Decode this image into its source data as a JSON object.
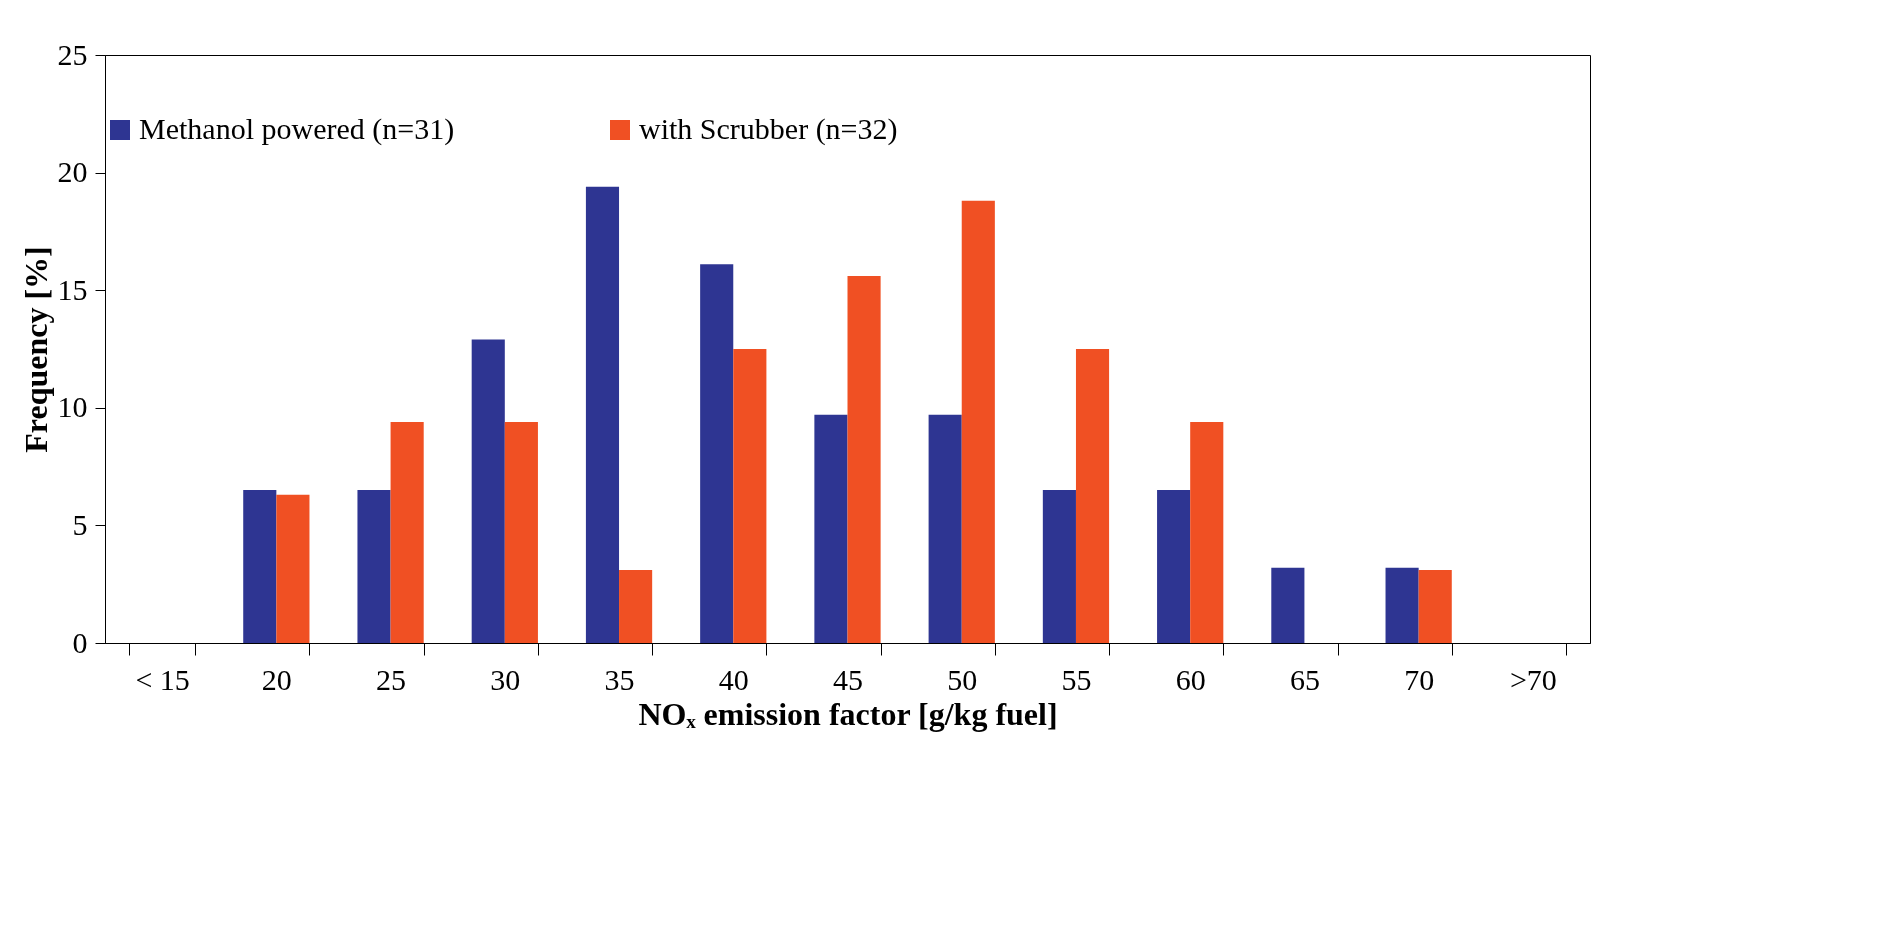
{
  "chart_data": {
    "type": "bar",
    "xlabel": "NOₓ emission factor [g/kg fuel]",
    "ylabel": "Frequency [%]",
    "categories": [
      "< 15",
      "20",
      "25",
      "30",
      "35",
      "40",
      "45",
      "50",
      "55",
      "60",
      "65",
      "70",
      ">70"
    ],
    "series": [
      {
        "name": "Methanol powered (n=31)",
        "color": "#2e3592",
        "values": [
          null,
          6.5,
          6.5,
          12.9,
          19.4,
          16.1,
          9.7,
          9.7,
          6.5,
          6.5,
          3.2,
          3.2,
          null
        ]
      },
      {
        "name": "with Scrubber (n=32)",
        "color": "#f05023",
        "values": [
          null,
          6.3,
          9.4,
          9.4,
          3.1,
          12.5,
          15.6,
          18.8,
          12.5,
          9.4,
          null,
          3.1,
          null
        ]
      }
    ],
    "ylim": [
      0,
      25
    ],
    "yticks": [
      0,
      5,
      10,
      15,
      20,
      25
    ],
    "grid": false,
    "legend": "top"
  }
}
